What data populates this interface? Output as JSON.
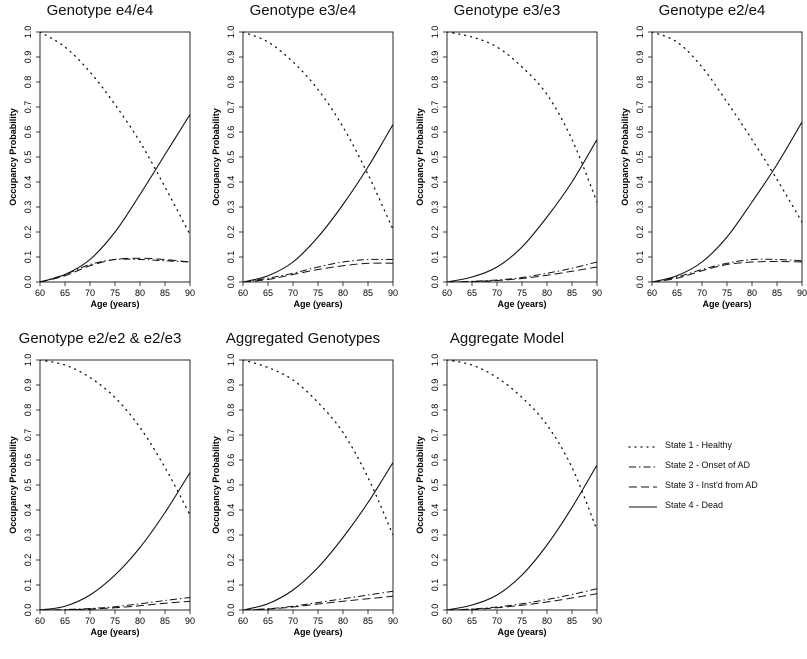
{
  "legend": {
    "items": [
      {
        "label": "State 1 - Healthy",
        "style": "dotted"
      },
      {
        "label": "State 2 - Onset of AD",
        "style": "dashdot"
      },
      {
        "label": "State 3 - Inst'd from AD",
        "style": "dashed"
      },
      {
        "label": "State 4 - Dead",
        "style": "solid"
      }
    ]
  },
  "chart_data": [
    {
      "type": "line",
      "title": "Genotype e4/e4",
      "xlabel": "Age (years)",
      "ylabel": "Occupancy Probability",
      "x": [
        60,
        65,
        70,
        75,
        80,
        85,
        90
      ],
      "xlim": [
        60,
        90
      ],
      "ylim": [
        0,
        1
      ],
      "xticks": [
        "60",
        "65",
        "70",
        "75",
        "80",
        "85",
        "90"
      ],
      "yticks": [
        "0.0",
        "0.1",
        "0.2",
        "0.3",
        "0.4",
        "0.5",
        "0.6",
        "0.7",
        "0.8",
        "0.9",
        "1.0"
      ],
      "series": [
        {
          "name": "State 1 - Healthy",
          "values": [
            1.0,
            0.94,
            0.84,
            0.71,
            0.56,
            0.38,
            0.19
          ]
        },
        {
          "name": "State 2 - Onset of AD",
          "values": [
            0.0,
            0.03,
            0.07,
            0.09,
            0.09,
            0.085,
            0.08
          ]
        },
        {
          "name": "State 3 - Inst'd from AD",
          "values": [
            0.0,
            0.025,
            0.065,
            0.09,
            0.095,
            0.09,
            0.08
          ]
        },
        {
          "name": "State 4 - Dead",
          "values": [
            0.0,
            0.03,
            0.09,
            0.2,
            0.35,
            0.51,
            0.67
          ]
        }
      ]
    },
    {
      "type": "line",
      "title": "Genotype e3/e4",
      "xlabel": "Age (years)",
      "ylabel": "Occupancy Probability",
      "x": [
        60,
        65,
        70,
        75,
        80,
        85,
        90
      ],
      "xlim": [
        60,
        90
      ],
      "ylim": [
        0,
        1
      ],
      "xticks": [
        "60",
        "65",
        "70",
        "75",
        "80",
        "85",
        "90"
      ],
      "yticks": [
        "0.0",
        "0.1",
        "0.2",
        "0.3",
        "0.4",
        "0.5",
        "0.6",
        "0.7",
        "0.8",
        "0.9",
        "1.0"
      ],
      "series": [
        {
          "name": "State 1 - Healthy",
          "values": [
            1.0,
            0.96,
            0.88,
            0.77,
            0.62,
            0.43,
            0.21
          ]
        },
        {
          "name": "State 2 - Onset of AD",
          "values": [
            0.0,
            0.015,
            0.035,
            0.06,
            0.08,
            0.09,
            0.09
          ]
        },
        {
          "name": "State 3 - Inst'd from AD",
          "values": [
            0.0,
            0.01,
            0.03,
            0.05,
            0.065,
            0.075,
            0.075
          ]
        },
        {
          "name": "State 4 - Dead",
          "values": [
            0.0,
            0.025,
            0.08,
            0.18,
            0.31,
            0.46,
            0.63
          ]
        }
      ]
    },
    {
      "type": "line",
      "title": "Genotype e3/e3",
      "xlabel": "Age (years)",
      "ylabel": "Occupancy Probability",
      "x": [
        60,
        65,
        70,
        75,
        80,
        85,
        90
      ],
      "xlim": [
        60,
        90
      ],
      "ylim": [
        0,
        1
      ],
      "xticks": [
        "60",
        "65",
        "70",
        "75",
        "80",
        "85",
        "90"
      ],
      "yticks": [
        "0.0",
        "0.1",
        "0.2",
        "0.3",
        "0.4",
        "0.5",
        "0.6",
        "0.7",
        "0.8",
        "0.9",
        "1.0"
      ],
      "series": [
        {
          "name": "State 1 - Healthy",
          "values": [
            1.0,
            0.98,
            0.94,
            0.86,
            0.75,
            0.57,
            0.32
          ]
        },
        {
          "name": "State 2 - Onset of AD",
          "values": [
            0.0,
            0.003,
            0.008,
            0.018,
            0.035,
            0.055,
            0.08
          ]
        },
        {
          "name": "State 3 - Inst'd from AD",
          "values": [
            0.0,
            0.002,
            0.006,
            0.014,
            0.027,
            0.043,
            0.06
          ]
        },
        {
          "name": "State 4 - Dead",
          "values": [
            0.0,
            0.02,
            0.06,
            0.14,
            0.26,
            0.4,
            0.57
          ]
        }
      ]
    },
    {
      "type": "line",
      "title": "Genotype e2/e4",
      "xlabel": "Age (years)",
      "ylabel": "Occupancy Probability",
      "x": [
        60,
        65,
        70,
        75,
        80,
        85,
        90
      ],
      "xlim": [
        60,
        90
      ],
      "ylim": [
        0,
        1
      ],
      "xticks": [
        "60",
        "65",
        "70",
        "75",
        "80",
        "85",
        "90"
      ],
      "yticks": [
        "0.0",
        "0.1",
        "0.2",
        "0.3",
        "0.4",
        "0.5",
        "0.6",
        "0.7",
        "0.8",
        "0.9",
        "1.0"
      ],
      "series": [
        {
          "name": "State 1 - Healthy",
          "values": [
            1.0,
            0.96,
            0.86,
            0.72,
            0.57,
            0.41,
            0.24
          ]
        },
        {
          "name": "State 2 - Onset of AD",
          "values": [
            0.0,
            0.02,
            0.05,
            0.075,
            0.09,
            0.09,
            0.085
          ]
        },
        {
          "name": "State 3 - Inst'd from AD",
          "values": [
            0.0,
            0.015,
            0.045,
            0.07,
            0.08,
            0.082,
            0.08
          ]
        },
        {
          "name": "State 4 - Dead",
          "values": [
            0.0,
            0.025,
            0.08,
            0.18,
            0.32,
            0.47,
            0.64
          ]
        }
      ]
    },
    {
      "type": "line",
      "title": "Genotype e2/e2 & e2/e3",
      "xlabel": "Age (years)",
      "ylabel": "Occupancy Probability",
      "x": [
        60,
        65,
        70,
        75,
        80,
        85,
        90
      ],
      "xlim": [
        60,
        90
      ],
      "ylim": [
        0,
        1
      ],
      "xticks": [
        "60",
        "65",
        "70",
        "75",
        "80",
        "85",
        "90"
      ],
      "yticks": [
        "0.0",
        "0.1",
        "0.2",
        "0.3",
        "0.4",
        "0.5",
        "0.6",
        "0.7",
        "0.8",
        "0.9",
        "1.0"
      ],
      "series": [
        {
          "name": "State 1 - Healthy",
          "values": [
            1.0,
            0.98,
            0.93,
            0.85,
            0.73,
            0.57,
            0.38
          ]
        },
        {
          "name": "State 2 - Onset of AD",
          "values": [
            0.0,
            0.002,
            0.006,
            0.013,
            0.025,
            0.038,
            0.05
          ]
        },
        {
          "name": "State 3 - Inst'd from AD",
          "values": [
            0.0,
            0.001,
            0.004,
            0.009,
            0.017,
            0.027,
            0.035
          ]
        },
        {
          "name": "State 4 - Dead",
          "values": [
            0.0,
            0.015,
            0.06,
            0.14,
            0.25,
            0.39,
            0.55
          ]
        }
      ]
    },
    {
      "type": "line",
      "title": "Aggregated Genotypes",
      "xlabel": "Age (years)",
      "ylabel": "Occupancy Probability",
      "x": [
        60,
        65,
        70,
        75,
        80,
        85,
        90
      ],
      "xlim": [
        60,
        90
      ],
      "ylim": [
        0,
        1
      ],
      "xticks": [
        "60",
        "65",
        "70",
        "75",
        "80",
        "85",
        "90"
      ],
      "yticks": [
        "0.0",
        "0.1",
        "0.2",
        "0.3",
        "0.4",
        "0.5",
        "0.6",
        "0.7",
        "0.8",
        "0.9",
        "1.0"
      ],
      "series": [
        {
          "name": "State 1 - Healthy",
          "values": [
            1.0,
            0.97,
            0.92,
            0.83,
            0.71,
            0.53,
            0.3
          ]
        },
        {
          "name": "State 2 - Onset of AD",
          "values": [
            0.0,
            0.005,
            0.015,
            0.03,
            0.045,
            0.06,
            0.075
          ]
        },
        {
          "name": "State 3 - Inst'd from AD",
          "values": [
            0.0,
            0.004,
            0.012,
            0.024,
            0.035,
            0.045,
            0.055
          ]
        },
        {
          "name": "State 4 - Dead",
          "values": [
            0.0,
            0.025,
            0.08,
            0.17,
            0.29,
            0.43,
            0.59
          ]
        }
      ]
    },
    {
      "type": "line",
      "title": "Aggregate Model",
      "xlabel": "Age (years)",
      "ylabel": "Occupancy Probability",
      "x": [
        60,
        65,
        70,
        75,
        80,
        85,
        90
      ],
      "xlim": [
        60,
        90
      ],
      "ylim": [
        0,
        1
      ],
      "xticks": [
        "60",
        "65",
        "70",
        "75",
        "80",
        "85",
        "90"
      ],
      "yticks": [
        "0.0",
        "0.1",
        "0.2",
        "0.3",
        "0.4",
        "0.5",
        "0.6",
        "0.7",
        "0.8",
        "0.9",
        "1.0"
      ],
      "series": [
        {
          "name": "State 1 - Healthy",
          "values": [
            1.0,
            0.98,
            0.93,
            0.85,
            0.74,
            0.57,
            0.32
          ]
        },
        {
          "name": "State 2 - Onset of AD",
          "values": [
            0.0,
            0.004,
            0.012,
            0.025,
            0.042,
            0.062,
            0.085
          ]
        },
        {
          "name": "State 3 - Inst'd from AD",
          "values": [
            0.0,
            0.003,
            0.009,
            0.019,
            0.032,
            0.048,
            0.065
          ]
        },
        {
          "name": "State 4 - Dead",
          "values": [
            0.0,
            0.02,
            0.06,
            0.14,
            0.26,
            0.41,
            0.58
          ]
        }
      ]
    }
  ]
}
